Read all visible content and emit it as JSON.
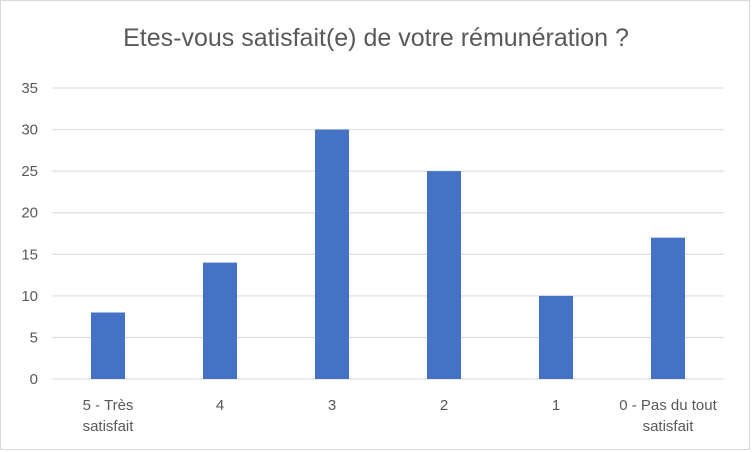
{
  "chart_data": {
    "type": "bar",
    "title": "Etes-vous satisfait(e) de votre rémunération ?",
    "categories": [
      [
        "5 - Très",
        "satisfait"
      ],
      [
        "4"
      ],
      [
        "3"
      ],
      [
        "2"
      ],
      [
        "1"
      ],
      [
        "0 - Pas du tout",
        "satisfait"
      ]
    ],
    "values": [
      8,
      14,
      30,
      25,
      10,
      17
    ],
    "ylim": [
      0,
      35
    ],
    "yticks": [
      0,
      5,
      10,
      15,
      20,
      25,
      30,
      35
    ],
    "xlabel": "",
    "ylabel": "",
    "grid": true,
    "legend": "none",
    "bar_color": "#4472c4",
    "grid_color": "#d9d9d9",
    "text_color": "#595959"
  }
}
